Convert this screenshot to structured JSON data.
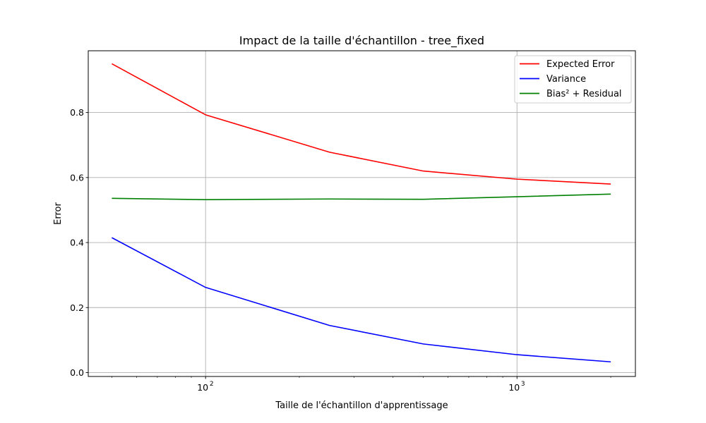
{
  "chart_data": {
    "type": "line",
    "title": "Impact de la taille d'échantillon - tree_fixed",
    "xlabel": "Taille de l'échantillon d'apprentissage",
    "ylabel": "Error",
    "x_scale": "log",
    "xlim": [
      42,
      2400
    ],
    "ylim": [
      -0.012,
      0.99
    ],
    "x": [
      50,
      100,
      250,
      500,
      1000,
      2000
    ],
    "x_major_ticks": [
      {
        "value": 100,
        "base": "10",
        "exp": "2"
      },
      {
        "value": 1000,
        "base": "10",
        "exp": "3"
      }
    ],
    "y_ticks": [
      {
        "value": 0.0,
        "label": "0.0"
      },
      {
        "value": 0.2,
        "label": "0.2"
      },
      {
        "value": 0.4,
        "label": "0.4"
      },
      {
        "value": 0.6,
        "label": "0.6"
      },
      {
        "value": 0.8,
        "label": "0.8"
      }
    ],
    "grid": true,
    "legend_position": "top-right",
    "series": [
      {
        "name": "Expected Error",
        "color": "#ff0000",
        "values": [
          0.95,
          0.793,
          0.678,
          0.62,
          0.595,
          0.58
        ]
      },
      {
        "name": "Variance",
        "color": "#0000ff",
        "values": [
          0.415,
          0.262,
          0.145,
          0.088,
          0.055,
          0.033
        ]
      },
      {
        "name": "Bias² + Residual",
        "color": "#008000",
        "values": [
          0.536,
          0.532,
          0.534,
          0.533,
          0.541,
          0.549
        ]
      }
    ]
  }
}
